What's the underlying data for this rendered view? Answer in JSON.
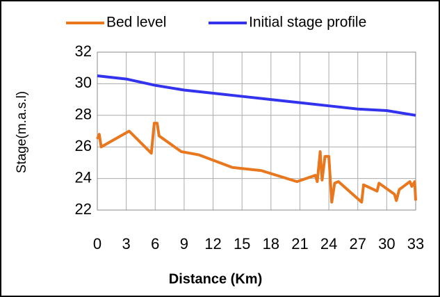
{
  "chart_data": {
    "type": "line",
    "x_label": "Distance (Km)",
    "y_label": "Stage(m.a.s.l)",
    "xlim": [
      0,
      33
    ],
    "xticks": [
      0,
      3,
      6,
      9,
      12,
      15,
      18,
      21,
      24,
      27,
      30,
      33
    ],
    "ylim": [
      22,
      32
    ],
    "yticks": [
      22,
      24,
      26,
      28,
      30,
      32
    ],
    "grid": true,
    "legend": "top",
    "series": [
      {
        "name": "Bed level",
        "color": "#e8771e",
        "x": [
          0,
          0.2,
          0.4,
          3.3,
          5.6,
          5.9,
          6.2,
          6.4,
          8.7,
          10.5,
          14,
          17,
          20.7,
          22.6,
          22.8,
          23.1,
          23.3,
          23.6,
          24,
          24.3,
          24.6,
          25,
          27.4,
          27.6,
          29,
          29.2,
          30.8,
          31,
          31.3,
          32.4,
          32.6,
          32.9,
          33
        ],
        "values": [
          26.5,
          26.8,
          26.0,
          27.0,
          25.6,
          27.5,
          27.5,
          26.7,
          25.7,
          25.5,
          24.7,
          24.5,
          23.8,
          24.2,
          23.8,
          25.7,
          23.9,
          25.4,
          25.4,
          22.5,
          23.7,
          23.8,
          22.5,
          23.6,
          23.2,
          23.7,
          23.0,
          22.6,
          23.3,
          23.8,
          23.5,
          23.8,
          22.6
        ]
      },
      {
        "name": "Initial stage profile",
        "color": "#3333ee",
        "x": [
          0,
          3,
          6,
          9,
          12,
          15,
          18,
          21,
          24,
          27,
          30,
          33
        ],
        "values": [
          30.5,
          30.3,
          29.9,
          29.6,
          29.4,
          29.2,
          29.0,
          28.8,
          28.6,
          28.4,
          28.3,
          28.0
        ]
      }
    ]
  }
}
